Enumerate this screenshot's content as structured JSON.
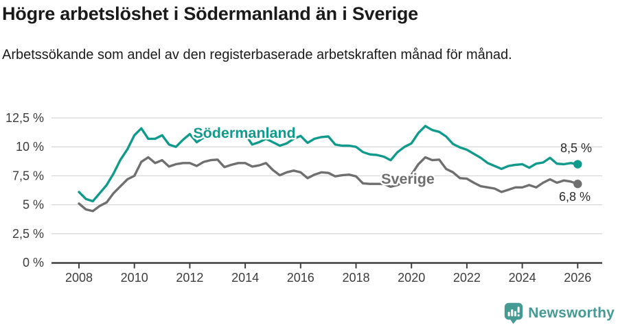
{
  "header": {
    "title": "Högre arbetslöshet i Södermanland än i Sverige",
    "subtitle": "Arbetssökande som andel av den registerbaserade arbetskraften månad för månad."
  },
  "footer": {
    "brand": "Newsworthy",
    "logo_icon": "newsworthy-pin-barchart-icon"
  },
  "colors": {
    "title_text": "#1a1a1a",
    "accent_teal": "#0f9a8b",
    "line_gray": "#6f6f6f",
    "grid": "#d8d8d8",
    "axis": "#3e3e3e",
    "tick_text": "#3c3c3c",
    "annotation_text": "#2b2b2b",
    "logo_teal": "#459a93"
  },
  "chart_data": {
    "type": "line",
    "title": "Högre arbetslöshet i Södermanland än i Sverige",
    "subtitle": "Arbetssökande som andel av den registerbaserade arbetskraften månad för månad.",
    "unit": "%",
    "grid": "horizontal",
    "legend_position": "inline-labels",
    "x_start": 2008,
    "x_step": 0.25,
    "xlim": [
      2007.0,
      2026.9
    ],
    "ylim": [
      0,
      12.5
    ],
    "x_ticks": [
      2008,
      2010,
      2012,
      2014,
      2016,
      2018,
      2020,
      2022,
      2024,
      2026
    ],
    "x_tick_labels": [
      "2008",
      "2010",
      "2012",
      "2014",
      "2016",
      "2018",
      "2020",
      "2022",
      "2024",
      "2026"
    ],
    "y_ticks": [
      {
        "value": 12.5,
        "label": "12,5 %"
      },
      {
        "value": 10,
        "label": "10 %"
      },
      {
        "value": 7.5,
        "label": "7,5 %"
      },
      {
        "value": 5,
        "label": "5 %"
      },
      {
        "value": 2.5,
        "label": "2,5 %"
      },
      {
        "value": 0,
        "label": "0 %"
      }
    ],
    "series": [
      {
        "name": "Södermanland",
        "color": "#0f9a8b",
        "end_label": "8,5 %",
        "end_value": 8.5,
        "values": [
          6.1,
          5.5,
          5.3,
          6.0,
          6.7,
          7.7,
          8.9,
          9.8,
          11.0,
          11.6,
          10.7,
          10.7,
          11.0,
          10.2,
          10.0,
          10.6,
          11.1,
          10.4,
          10.8,
          11.0,
          11.2,
          10.9,
          11.0,
          11.15,
          11.1,
          10.2,
          10.4,
          10.7,
          10.4,
          10.1,
          10.3,
          10.7,
          10.95,
          10.35,
          10.7,
          10.85,
          10.9,
          10.2,
          10.1,
          10.1,
          10.0,
          9.55,
          9.35,
          9.3,
          9.15,
          8.85,
          9.55,
          10.0,
          10.3,
          11.2,
          11.8,
          11.45,
          11.3,
          10.9,
          10.25,
          9.95,
          9.75,
          9.4,
          9.05,
          8.6,
          8.35,
          8.1,
          8.35,
          8.45,
          8.5,
          8.2,
          8.55,
          8.65,
          9.05,
          8.55,
          8.5,
          8.6,
          8.5
        ]
      },
      {
        "name": "Sverige",
        "color": "#6f6f6f",
        "end_label": "6,8 %",
        "end_value": 6.8,
        "values": [
          5.1,
          4.6,
          4.45,
          4.9,
          5.2,
          6.0,
          6.6,
          7.2,
          7.5,
          8.7,
          9.1,
          8.6,
          8.85,
          8.3,
          8.5,
          8.6,
          8.6,
          8.35,
          8.7,
          8.85,
          8.9,
          8.25,
          8.45,
          8.6,
          8.6,
          8.3,
          8.4,
          8.6,
          8.0,
          7.55,
          7.8,
          7.95,
          7.8,
          7.3,
          7.6,
          7.8,
          7.75,
          7.45,
          7.55,
          7.6,
          7.45,
          6.85,
          6.8,
          6.8,
          6.8,
          6.55,
          6.7,
          7.0,
          7.6,
          8.5,
          9.1,
          8.85,
          8.9,
          8.1,
          7.8,
          7.3,
          7.25,
          6.9,
          6.6,
          6.5,
          6.4,
          6.1,
          6.3,
          6.5,
          6.5,
          6.7,
          6.5,
          6.9,
          7.2,
          6.9,
          7.1,
          7.0,
          6.8
        ]
      }
    ]
  }
}
